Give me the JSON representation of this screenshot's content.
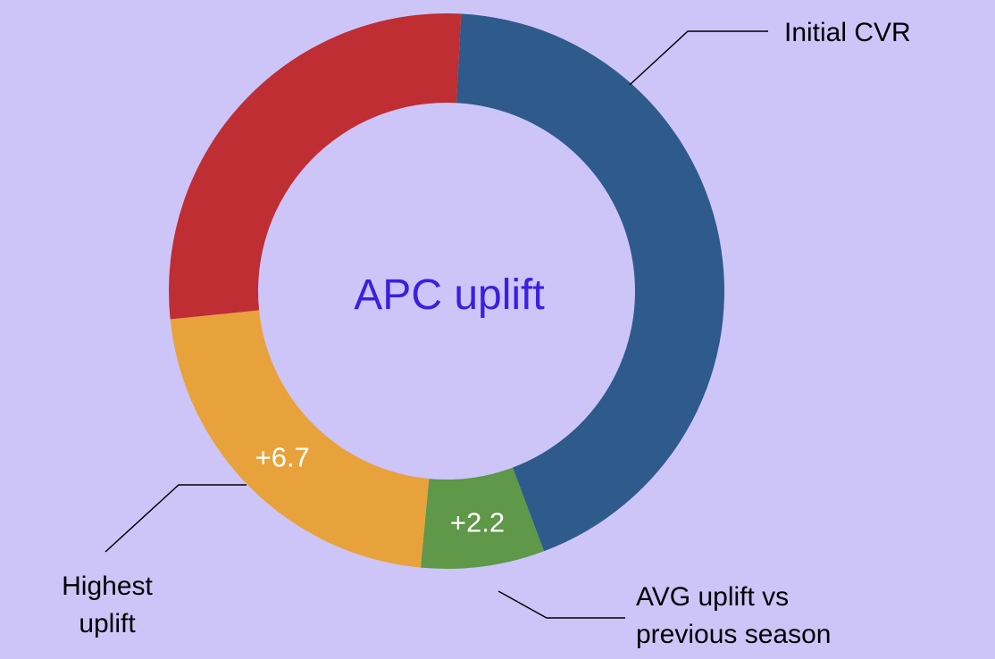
{
  "chart_data": {
    "type": "donut",
    "center_text": "APC uplift",
    "slices": [
      {
        "name": "Initial CVR",
        "color": "#2e5a8c"
      },
      {
        "name": null,
        "color": "#be2e33"
      },
      {
        "name": "AVG uplift vs\nprevious season",
        "color": "#5e9848"
      },
      {
        "name": "Highest\nuplift",
        "color": "#e8a23c"
      }
    ],
    "order": [
      0,
      2,
      3,
      1
    ],
    "values": [
      13.3,
      8.4,
      2.2,
      6.7
    ],
    "value_labels": [
      null,
      null,
      "+2.2",
      "+6.7"
    ]
  }
}
